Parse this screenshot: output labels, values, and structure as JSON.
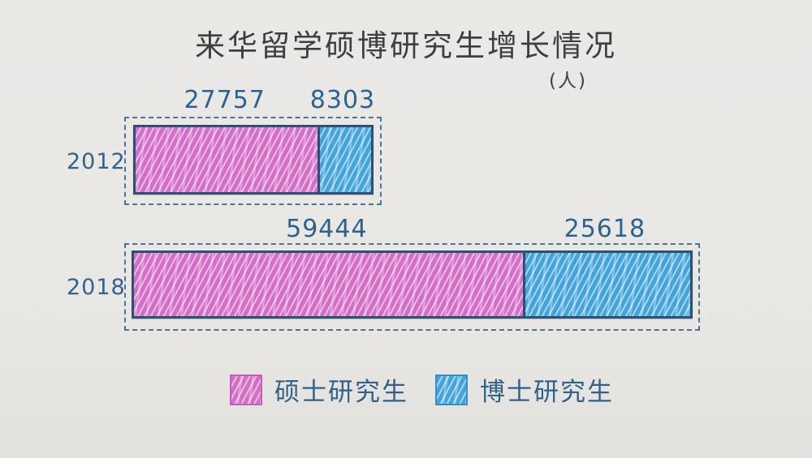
{
  "title": "来华留学硕博研究生增长情况",
  "unit_label": "(人)",
  "colors": {
    "masters": "#d46cc7",
    "doctoral": "#3fa3dc",
    "value_label": "#28608f",
    "year_label": "#2f6189",
    "title_text": "#3c3c3e",
    "dashed_border": "#4c7191",
    "bar_border": "#2a4d73",
    "background": "#e9e8e5"
  },
  "legend": [
    {
      "label": "硕士研究生",
      "color_key": "masters"
    },
    {
      "label": "博士研究生",
      "color_key": "doctoral"
    }
  ],
  "chart_data": {
    "type": "bar",
    "orientation": "horizontal",
    "stacked": true,
    "title": "来华留学硕博研究生增长情况",
    "unit": "人",
    "categories": [
      "2012",
      "2018"
    ],
    "series": [
      {
        "name": "硕士研究生",
        "values": [
          27757,
          59444
        ]
      },
      {
        "name": "博士研究生",
        "values": [
          8303,
          25618
        ]
      }
    ],
    "totals": [
      36060,
      85062
    ],
    "value_labels_shown": true,
    "legend_position": "bottom",
    "grid": false,
    "style": "hand-drawn pencil hatching on paper"
  }
}
